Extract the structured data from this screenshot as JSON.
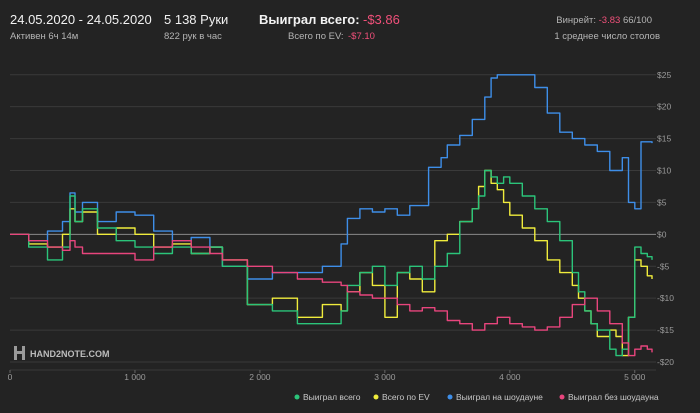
{
  "header": {
    "date_range": "24.05.2020 - 24.05.2020",
    "active": "Активен 6ч 14м",
    "hands": "5 138 Руки",
    "hands_per_hour": "822 рук в час",
    "won_total_label": "Выиграл всего:",
    "won_total_value": "-$3.86",
    "ev_total_label": "Всего по EV:",
    "ev_total_value": "-$7.10",
    "winrate_label": "Винрейт:",
    "winrate_value": "-3.83",
    "winrate_suffix": "66/100",
    "avg_tables": "1 среднее число столов"
  },
  "brand": {
    "logo_text": "HAND2NOTE.COM"
  },
  "colors": {
    "won_total": "#2bc47a",
    "ev_total": "#f0ec3c",
    "showdown": "#3e8ee8",
    "non_showdown": "#e8457d",
    "background": "#232323"
  },
  "chart_data": {
    "type": "line",
    "xlim": [
      0,
      5138
    ],
    "ylim": [
      -20,
      27
    ],
    "x_ticks": [
      0,
      1000,
      2000,
      3000,
      4000,
      5000
    ],
    "x_tick_labels": [
      "0",
      "1 000",
      "2 000",
      "3 000",
      "4 000",
      "5 000"
    ],
    "y_ticks": [
      25,
      20,
      15,
      10,
      5,
      0,
      -5,
      -10,
      -15,
      -20
    ],
    "y_tick_labels": [
      "$25",
      "$20",
      "$15",
      "$10",
      "$5",
      "$0",
      "-$5",
      "-$10",
      "-$15",
      "-$20"
    ],
    "grid": true,
    "legend_position": "bottom-right",
    "series": [
      {
        "name": "Выиграл на шоудауне",
        "color_key": "showdown",
        "x": [
          0,
          150,
          300,
          420,
          480,
          520,
          580,
          700,
          850,
          1000,
          1150,
          1300,
          1450,
          1600,
          1700,
          1900,
          2100,
          2300,
          2500,
          2650,
          2700,
          2800,
          2900,
          3000,
          3100,
          3200,
          3350,
          3450,
          3500,
          3600,
          3700,
          3800,
          3850,
          3900,
          3950,
          4000,
          4100,
          4200,
          4300,
          4400,
          4500,
          4600,
          4700,
          4800,
          4900,
          4950,
          5000,
          5050,
          5100,
          5138
        ],
        "y": [
          0,
          -1,
          0.5,
          2,
          6.5,
          3.5,
          5,
          2,
          3.5,
          3,
          0.5,
          -1,
          -0.5,
          -2,
          -5,
          -7,
          -6,
          -6,
          -5,
          -1.5,
          2.5,
          4,
          3.5,
          4,
          3,
          4.5,
          10.5,
          12,
          14,
          15.5,
          18,
          21.5,
          24.5,
          25,
          25,
          25,
          25,
          23,
          19,
          16,
          15,
          14,
          13,
          10,
          12,
          5,
          4,
          14.5,
          14.5,
          14.3
        ]
      },
      {
        "name": "Всего по EV",
        "color_key": "ev_total",
        "x": [
          0,
          150,
          300,
          420,
          480,
          520,
          580,
          700,
          850,
          1000,
          1150,
          1300,
          1450,
          1600,
          1700,
          1900,
          2100,
          2300,
          2500,
          2650,
          2700,
          2800,
          2900,
          3000,
          3100,
          3200,
          3300,
          3400,
          3500,
          3600,
          3700,
          3750,
          3800,
          3850,
          3900,
          3950,
          4000,
          4100,
          4200,
          4300,
          4400,
          4500,
          4550,
          4600,
          4650,
          4700,
          4800,
          4850,
          4900,
          4950,
          5000,
          5050,
          5100,
          5138
        ],
        "y": [
          0,
          -1.5,
          -2,
          0,
          4,
          2,
          3.5,
          0,
          1,
          0,
          -2,
          -1.5,
          -3,
          -2,
          -4,
          -11,
          -10,
          -13,
          -11,
          -12,
          -9,
          -6,
          -8,
          -13,
          -6,
          -7,
          -9,
          -1,
          0,
          2,
          4,
          7.5,
          10,
          8,
          7,
          5,
          3,
          1,
          -1,
          -4,
          -6,
          -8,
          -10,
          -12,
          -14,
          -16,
          -15,
          -16,
          -19,
          -13,
          -4,
          -5,
          -6.5,
          -7
        ]
      },
      {
        "name": "Выиграл всего",
        "color_key": "won_total",
        "x": [
          0,
          150,
          300,
          420,
          480,
          520,
          580,
          700,
          850,
          1000,
          1150,
          1300,
          1450,
          1600,
          1700,
          1900,
          2100,
          2300,
          2500,
          2650,
          2700,
          2800,
          2900,
          3000,
          3100,
          3200,
          3300,
          3400,
          3500,
          3600,
          3700,
          3750,
          3800,
          3850,
          3900,
          3950,
          4000,
          4100,
          4200,
          4300,
          4400,
          4500,
          4550,
          4600,
          4650,
          4700,
          4800,
          4850,
          4900,
          4950,
          5000,
          5050,
          5100,
          5138
        ],
        "y": [
          0,
          -2,
          -4,
          -2,
          6,
          2,
          4,
          1,
          -1,
          -2,
          -3,
          -2,
          -3,
          -2,
          -5,
          -11,
          -12,
          -14,
          -14,
          -12,
          -8,
          -6,
          -5,
          -8,
          -6,
          -5,
          -7,
          -5,
          -3,
          2,
          4,
          6,
          10,
          9,
          8,
          9,
          8,
          6,
          4,
          2,
          -1,
          -6,
          -9,
          -12,
          -14,
          -15,
          -18,
          -19,
          -18,
          -13,
          -2,
          -3,
          -3.5,
          -4
        ]
      },
      {
        "name": "Выиграл без шоудауна",
        "color_key": "non_showdown",
        "x": [
          0,
          150,
          300,
          420,
          480,
          520,
          580,
          700,
          850,
          1000,
          1150,
          1300,
          1450,
          1600,
          1700,
          1900,
          2100,
          2300,
          2500,
          2650,
          2700,
          2800,
          2900,
          3000,
          3100,
          3200,
          3300,
          3400,
          3500,
          3600,
          3700,
          3800,
          3900,
          4000,
          4100,
          4200,
          4300,
          4400,
          4500,
          4600,
          4700,
          4800,
          4900,
          4950,
          5000,
          5050,
          5100,
          5138
        ],
        "y": [
          0,
          -1,
          -2,
          -2.5,
          -1,
          -2,
          -3,
          -3,
          -3,
          -4,
          -2,
          -1,
          -2,
          -3,
          -4,
          -5,
          -6,
          -7,
          -7.5,
          -8,
          -9,
          -9.5,
          -10,
          -10,
          -11,
          -12,
          -11.5,
          -12,
          -13.5,
          -14,
          -15,
          -14,
          -13,
          -14,
          -14.5,
          -15,
          -14.5,
          -13,
          -11,
          -10,
          -12,
          -14,
          -17,
          -19,
          -18,
          -17.5,
          -18,
          -18.5
        ]
      }
    ]
  }
}
